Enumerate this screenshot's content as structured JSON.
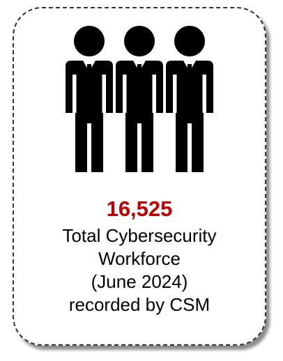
{
  "stat": {
    "value": "16,525",
    "value_color": "#c00000",
    "caption_lines": [
      "Total Cybersecurity",
      "Workforce",
      "(June 2024)",
      "recorded by CSM"
    ]
  },
  "icon": {
    "name": "people-group-icon",
    "color": "#000000"
  }
}
